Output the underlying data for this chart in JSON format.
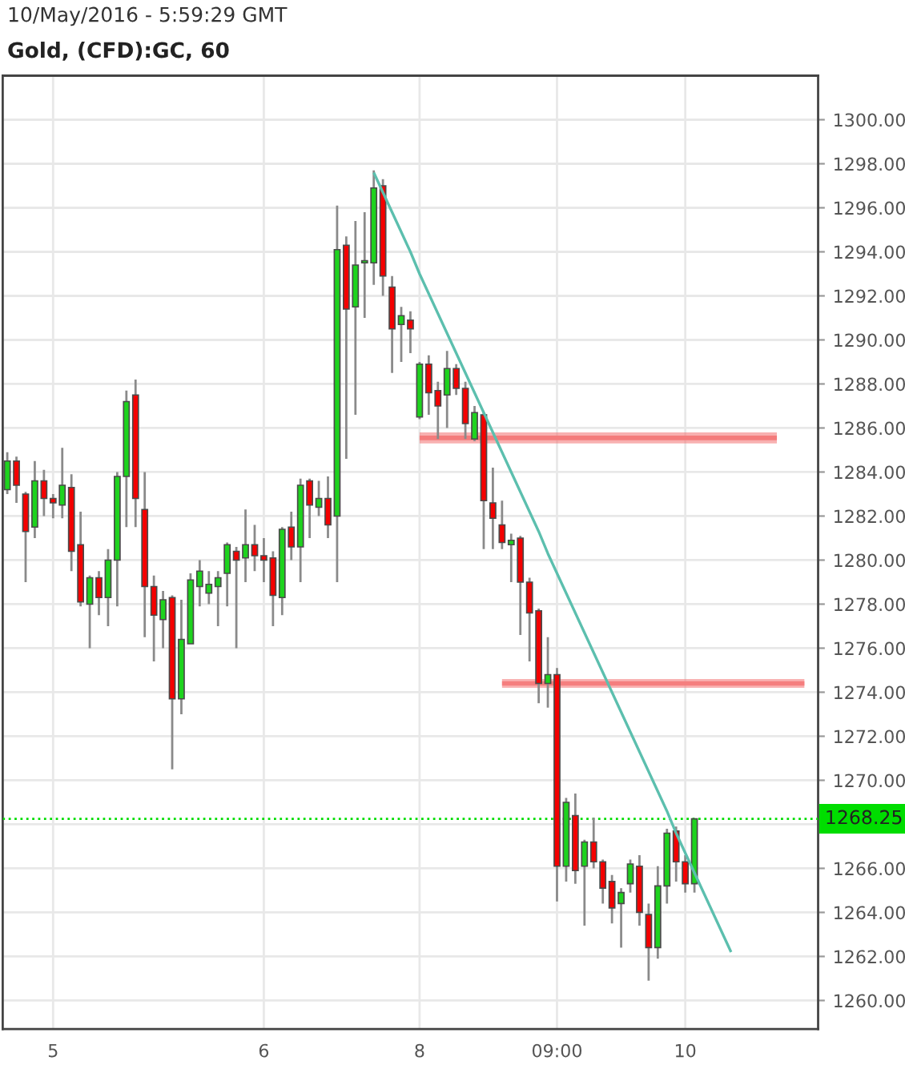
{
  "chart_data": {
    "type": "candlestick",
    "title": "Gold, (CFD):GC, 60",
    "annotations": [
      "10/May/2016 - 5:59:29 GMT"
    ],
    "categories": [
      null,
      null,
      null,
      null,
      null,
      "5",
      null,
      null,
      null,
      null,
      null,
      null,
      null,
      null,
      null,
      null,
      null,
      null,
      null,
      null,
      null,
      null,
      null,
      null,
      null,
      null,
      null,
      null,
      "6",
      null,
      null,
      null,
      null,
      null,
      null,
      null,
      null,
      null,
      null,
      null,
      null,
      null,
      null,
      null,
      null,
      "8",
      null,
      null,
      null,
      null,
      null,
      null,
      null,
      null,
      null,
      null,
      null,
      null,
      null,
      null,
      "09:00",
      null,
      null,
      null,
      null,
      null,
      null,
      null,
      null,
      null,
      null,
      null,
      null,
      null,
      "10",
      null,
      null,
      null,
      null,
      null,
      null,
      null,
      null,
      null,
      null,
      null,
      null,
      null,
      null
    ],
    "ohlc": [
      [
        1283.2,
        1284.9,
        1283.0,
        1284.5
      ],
      [
        1284.5,
        1284.7,
        1282.6,
        1283.4
      ],
      [
        1283.0,
        1283.1,
        1279.0,
        1281.3
      ],
      [
        1281.5,
        1284.5,
        1281.0,
        1283.6
      ],
      [
        1283.6,
        1284.1,
        1282.0,
        1282.8
      ],
      [
        1282.8,
        1283.0,
        1281.9,
        1282.6
      ],
      [
        1282.5,
        1285.1,
        1281.9,
        1283.4
      ],
      [
        1283.3,
        1283.9,
        1279.5,
        1280.4
      ],
      [
        1280.7,
        1282.2,
        1277.9,
        1278.1
      ],
      [
        1278.0,
        1279.3,
        1276.0,
        1279.2
      ],
      [
        1279.2,
        1279.5,
        1277.5,
        1278.3
      ],
      [
        1278.3,
        1280.5,
        1277.0,
        1280.0
      ],
      [
        1280.0,
        1284.0,
        1277.9,
        1283.8
      ],
      [
        1283.8,
        1287.7,
        1281.5,
        1287.2
      ],
      [
        1287.5,
        1288.2,
        1281.5,
        1282.8
      ],
      [
        1282.3,
        1284.0,
        1276.5,
        1278.8
      ],
      [
        1278.8,
        1279.3,
        1275.4,
        1277.5
      ],
      [
        1277.3,
        1278.6,
        1276.0,
        1278.2
      ],
      [
        1278.3,
        1278.4,
        1270.5,
        1273.7
      ],
      [
        1273.7,
        1278.2,
        1273.0,
        1276.4
      ],
      [
        1276.2,
        1279.4,
        1276.2,
        1279.1
      ],
      [
        1278.8,
        1280.0,
        1277.9,
        1279.5
      ],
      [
        1278.5,
        1279.5,
        1278.0,
        1278.9
      ],
      [
        1278.8,
        1279.5,
        1277.0,
        1279.2
      ],
      [
        1279.4,
        1280.8,
        1277.9,
        1280.7
      ],
      [
        1280.4,
        1280.6,
        1276.0,
        1280.0
      ],
      [
        1280.1,
        1282.3,
        1279.0,
        1280.7
      ],
      [
        1280.7,
        1281.6,
        1279.5,
        1280.2
      ],
      [
        1280.2,
        1281.0,
        1279.0,
        1280.0
      ],
      [
        1280.1,
        1280.4,
        1277.0,
        1278.4
      ],
      [
        1278.3,
        1281.5,
        1277.5,
        1281.4
      ],
      [
        1281.5,
        1282.2,
        1280.0,
        1280.6
      ],
      [
        1280.6,
        1283.7,
        1279.0,
        1283.4
      ],
      [
        1283.6,
        1283.7,
        1281.0,
        1282.5
      ],
      [
        1282.4,
        1283.6,
        1282.0,
        1282.8
      ],
      [
        1282.8,
        1283.8,
        1281.0,
        1281.6
      ],
      [
        1282.0,
        1296.1,
        1279.0,
        1294.1
      ],
      [
        1294.3,
        1294.7,
        1284.6,
        1291.4
      ],
      [
        1291.5,
        1295.4,
        1286.6,
        1293.4
      ],
      [
        1293.5,
        1295.8,
        1291.0,
        1293.6
      ],
      [
        1293.5,
        1297.7,
        1292.5,
        1296.9
      ],
      [
        1297.0,
        1297.3,
        1292.0,
        1292.9
      ],
      [
        1292.4,
        1292.9,
        1288.5,
        1290.5
      ],
      [
        1290.7,
        1291.5,
        1289.0,
        1291.1
      ],
      [
        1290.9,
        1291.3,
        1289.4,
        1290.5
      ],
      [
        1286.5,
        1289.0,
        1286.4,
        1288.9
      ],
      [
        1288.9,
        1289.3,
        1286.6,
        1287.6
      ],
      [
        1287.7,
        1288.1,
        1285.5,
        1287.0
      ],
      [
        1287.5,
        1289.5,
        1286.0,
        1288.7
      ],
      [
        1288.7,
        1288.9,
        1287.5,
        1287.8
      ],
      [
        1287.8,
        1288.1,
        1285.5,
        1286.2
      ],
      [
        1285.5,
        1287.0,
        1285.4,
        1286.7
      ],
      [
        1286.6,
        1286.7,
        1280.5,
        1282.7
      ],
      [
        1282.6,
        1284.2,
        1280.5,
        1281.9
      ],
      [
        1281.6,
        1282.7,
        1280.5,
        1280.8
      ],
      [
        1280.7,
        1281.2,
        1279.0,
        1280.9
      ],
      [
        1281.0,
        1281.1,
        1276.6,
        1279.0
      ],
      [
        1279.0,
        1279.2,
        1275.4,
        1277.6
      ],
      [
        1277.7,
        1277.8,
        1273.5,
        1274.4
      ],
      [
        1274.4,
        1276.5,
        1273.3,
        1274.8
      ],
      [
        1274.8,
        1275.1,
        1264.5,
        1266.1
      ],
      [
        1266.1,
        1269.2,
        1265.4,
        1269.0
      ],
      [
        1268.4,
        1269.4,
        1265.3,
        1265.9
      ],
      [
        1266.1,
        1267.3,
        1263.4,
        1267.2
      ],
      [
        1267.2,
        1268.3,
        1266.0,
        1266.3
      ],
      [
        1266.3,
        1266.4,
        1264.4,
        1265.1
      ],
      [
        1265.4,
        1265.7,
        1263.5,
        1264.2
      ],
      [
        1264.4,
        1265.1,
        1262.4,
        1264.9
      ],
      [
        1265.3,
        1266.4,
        1264.9,
        1266.2
      ],
      [
        1266.1,
        1266.6,
        1263.4,
        1264.0
      ],
      [
        1263.9,
        1264.4,
        1260.9,
        1262.4
      ],
      [
        1262.4,
        1266.1,
        1261.9,
        1265.2
      ],
      [
        1265.2,
        1267.8,
        1264.4,
        1267.6
      ],
      [
        1267.7,
        1267.9,
        1265.4,
        1266.3
      ],
      [
        1266.3,
        1266.6,
        1264.9,
        1265.3
      ],
      [
        1265.3,
        1268.25,
        1264.9,
        1268.25
      ],
      null,
      null,
      null,
      null,
      null,
      null,
      null,
      null,
      null,
      null,
      null,
      null,
      null
    ],
    "colors": [
      "#1ed31e",
      "#f40000",
      "#f40000",
      "#1ed31e",
      "#f40000",
      "#f40000",
      "#1ed31e",
      "#f40000",
      "#f40000",
      "#1ed31e",
      "#f40000",
      "#1ed31e",
      "#1ed31e",
      "#1ed31e",
      "#f40000",
      "#f40000",
      "#f40000",
      "#1ed31e",
      "#f40000",
      "#1ed31e",
      "#1ed31e",
      "#1ed31e",
      "#1ed31e",
      "#1ed31e",
      "#1ed31e",
      "#f40000",
      "#1ed31e",
      "#f40000",
      "#f40000",
      "#f40000",
      "#1ed31e",
      "#f40000",
      "#1ed31e",
      "#f40000",
      "#1ed31e",
      "#f40000",
      "#1ed31e",
      "#f40000",
      "#1ed31e",
      "#1ed31e",
      "#1ed31e",
      "#f40000",
      "#f40000",
      "#1ed31e",
      "#f40000",
      "#1ed31e",
      "#f40000",
      "#f40000",
      "#1ed31e",
      "#f40000",
      "#f40000",
      "#1ed31e",
      "#f40000",
      "#f40000",
      "#f40000",
      "#1ed31e",
      "#f40000",
      "#f40000",
      "#f40000",
      "#1ed31e",
      "#f40000",
      "#1ed31e",
      "#f40000",
      "#1ed31e",
      "#f40000",
      "#f40000",
      "#f40000",
      "#1ed31e",
      "#1ed31e",
      "#f40000",
      "#f40000",
      "#1ed31e",
      "#1ed31e",
      "#f40000",
      "#f40000",
      "#1ed31e",
      null,
      null,
      null,
      null,
      null,
      null,
      null,
      null,
      null,
      null,
      null,
      null,
      null
    ],
    "series": [
      {
        "type": "line",
        "color": "#5cbfae",
        "values": [
          null,
          null,
          null,
          null,
          null,
          null,
          null,
          null,
          null,
          null,
          null,
          null,
          null,
          null,
          null,
          null,
          null,
          null,
          null,
          null,
          null,
          null,
          null,
          null,
          null,
          null,
          null,
          null,
          null,
          null,
          null,
          null,
          null,
          null,
          null,
          null,
          null,
          null,
          null,
          null,
          1297.6,
          1296.7,
          1295.8,
          1294.9,
          1294.0,
          1293.0,
          1292.1,
          1291.2,
          1290.3,
          1289.4,
          1288.5,
          1287.6,
          1286.7,
          1285.8,
          1284.9,
          1284.0,
          1283.1,
          1282.2,
          1281.3,
          1280.3,
          1279.4,
          1278.5,
          1277.6,
          1276.7,
          1275.8,
          1274.9,
          1274.0,
          1273.1,
          1272.2,
          1271.3,
          1270.4,
          1269.5,
          1268.6,
          1267.6,
          1266.7,
          1265.8,
          1264.9,
          1264.0,
          1263.1,
          1262.2,
          null,
          null,
          null,
          null,
          null,
          null,
          null,
          null,
          null
        ]
      },
      {
        "type": "line",
        "color": "#f47c7c",
        "values": [
          null,
          null,
          null,
          null,
          null,
          null,
          null,
          null,
          null,
          null,
          null,
          null,
          null,
          null,
          null,
          null,
          null,
          null,
          null,
          null,
          null,
          null,
          null,
          null,
          null,
          null,
          null,
          null,
          null,
          null,
          null,
          null,
          null,
          null,
          null,
          null,
          null,
          null,
          null,
          null,
          null,
          null,
          null,
          null,
          null,
          1285.55,
          1285.55,
          1285.55,
          1285.55,
          1285.55,
          1285.55,
          1285.55,
          1285.55,
          1285.55,
          1285.55,
          1285.55,
          1285.55,
          1285.55,
          1285.55,
          1285.55,
          1285.55,
          1285.55,
          1285.55,
          1285.55,
          1285.55,
          1285.55,
          1285.55,
          1285.55,
          1285.55,
          1285.55,
          1285.55,
          1285.55,
          1285.55,
          1285.55,
          1285.55,
          1285.55,
          1285.55,
          1285.55,
          1285.55,
          1285.55,
          1285.55,
          1285.55,
          1285.55,
          1285.55,
          1285.55,
          null,
          null,
          null,
          null
        ],
        "lower": [
          null,
          null,
          null,
          null,
          null,
          null,
          null,
          null,
          null,
          null,
          null,
          null,
          null,
          null,
          null,
          null,
          null,
          null,
          null,
          null,
          null,
          null,
          null,
          null,
          null,
          null,
          null,
          null,
          null,
          null,
          null,
          null,
          null,
          null,
          null,
          null,
          null,
          null,
          null,
          null,
          null,
          null,
          null,
          null,
          null,
          1285.3,
          1285.3,
          1285.3,
          1285.3,
          1285.3,
          1285.3,
          1285.3,
          1285.3,
          1285.3,
          1285.3,
          1285.3,
          1285.3,
          1285.3,
          1285.3,
          1285.3,
          1285.3,
          1285.3,
          1285.3,
          1285.3,
          1285.3,
          1285.3,
          1285.3,
          1285.3,
          1285.3,
          1285.3,
          1285.3,
          1285.3,
          1285.3,
          1285.3,
          1285.3,
          1285.3,
          1285.3,
          1285.3,
          1285.3,
          1285.3,
          1285.3,
          1285.3,
          1285.3,
          1285.3,
          1285.3,
          null,
          null,
          null,
          null
        ],
        "upper": [
          null,
          null,
          null,
          null,
          null,
          null,
          null,
          null,
          null,
          null,
          null,
          null,
          null,
          null,
          null,
          null,
          null,
          null,
          null,
          null,
          null,
          null,
          null,
          null,
          null,
          null,
          null,
          null,
          null,
          null,
          null,
          null,
          null,
          null,
          null,
          null,
          null,
          null,
          null,
          null,
          null,
          null,
          null,
          null,
          null,
          1285.8,
          1285.8,
          1285.8,
          1285.8,
          1285.8,
          1285.8,
          1285.8,
          1285.8,
          1285.8,
          1285.8,
          1285.8,
          1285.8,
          1285.8,
          1285.8,
          1285.8,
          1285.8,
          1285.8,
          1285.8,
          1285.8,
          1285.8,
          1285.8,
          1285.8,
          1285.8,
          1285.8,
          1285.8,
          1285.8,
          1285.8,
          1285.8,
          1285.8,
          1285.8,
          1285.8,
          1285.8,
          1285.8,
          1285.8,
          1285.8,
          1285.8,
          1285.8,
          1285.8,
          1285.8,
          1285.8,
          null,
          null,
          null,
          null
        ]
      },
      {
        "type": "line",
        "color": "#f57e7e",
        "values": [
          null,
          null,
          null,
          null,
          null,
          null,
          null,
          null,
          null,
          null,
          null,
          null,
          null,
          null,
          null,
          null,
          null,
          null,
          null,
          null,
          null,
          null,
          null,
          null,
          null,
          null,
          null,
          null,
          null,
          null,
          null,
          null,
          null,
          null,
          null,
          null,
          null,
          null,
          null,
          null,
          null,
          null,
          null,
          null,
          null,
          null,
          null,
          null,
          null,
          null,
          null,
          null,
          null,
          null,
          1274.4,
          1274.4,
          1274.4,
          1274.4,
          1274.4,
          1274.4,
          1274.4,
          1274.4,
          1274.4,
          1274.4,
          1274.4,
          1274.4,
          1274.4,
          1274.4,
          1274.4,
          1274.4,
          1274.4,
          1274.4,
          1274.4,
          1274.4,
          1274.4,
          1274.4,
          1274.4,
          1274.4,
          1274.4,
          1274.4,
          1274.4,
          1274.4,
          1274.4,
          1274.4,
          1274.4,
          1274.4,
          1274.4,
          1274.4,
          null
        ],
        "lower": [
          null,
          null,
          null,
          null,
          null,
          null,
          null,
          null,
          null,
          null,
          null,
          null,
          null,
          null,
          null,
          null,
          null,
          null,
          null,
          null,
          null,
          null,
          null,
          null,
          null,
          null,
          null,
          null,
          null,
          null,
          null,
          null,
          null,
          null,
          null,
          null,
          null,
          null,
          null,
          null,
          null,
          null,
          null,
          null,
          null,
          null,
          null,
          null,
          null,
          null,
          null,
          null,
          null,
          null,
          1274.2,
          1274.2,
          1274.2,
          1274.2,
          1274.2,
          1274.2,
          1274.2,
          1274.2,
          1274.2,
          1274.2,
          1274.2,
          1274.2,
          1274.2,
          1274.2,
          1274.2,
          1274.2,
          1274.2,
          1274.2,
          1274.2,
          1274.2,
          1274.2,
          1274.2,
          1274.2,
          1274.2,
          1274.2,
          1274.2,
          1274.2,
          1274.2,
          1274.2,
          1274.2,
          1274.2,
          1274.2,
          1274.2,
          1274.2,
          null
        ],
        "upper": [
          null,
          null,
          null,
          null,
          null,
          null,
          null,
          null,
          null,
          null,
          null,
          null,
          null,
          null,
          null,
          null,
          null,
          null,
          null,
          null,
          null,
          null,
          null,
          null,
          null,
          null,
          null,
          null,
          null,
          null,
          null,
          null,
          null,
          null,
          null,
          null,
          null,
          null,
          null,
          null,
          null,
          null,
          null,
          null,
          null,
          null,
          null,
          null,
          null,
          null,
          null,
          null,
          null,
          null,
          1274.6,
          1274.6,
          1274.6,
          1274.6,
          1274.6,
          1274.6,
          1274.6,
          1274.6,
          1274.6,
          1274.6,
          1274.6,
          1274.6,
          1274.6,
          1274.6,
          1274.6,
          1274.6,
          1274.6,
          1274.6,
          1274.6,
          1274.6,
          1274.6,
          1274.6,
          1274.6,
          1274.6,
          1274.6,
          1274.6,
          1274.6,
          1274.6,
          1274.6,
          1274.6,
          1274.6,
          1274.6,
          1274.6,
          1274.6,
          null
        ]
      }
    ],
    "ylim": [
      1258.7,
      1302.0
    ],
    "yticks": [
      {
        "value": 1260,
        "label": "1260.00"
      },
      {
        "value": 1262,
        "label": "1262.00"
      },
      {
        "value": 1264,
        "label": "1264.00"
      },
      {
        "value": 1266,
        "label": "1266.00"
      },
      {
        "value": 1268,
        "label": null
      },
      {
        "value": 1270,
        "label": "1270.00"
      },
      {
        "value": 1272,
        "label": "1272.00"
      },
      {
        "value": 1274,
        "label": "1274.00"
      },
      {
        "value": 1276,
        "label": "1276.00"
      },
      {
        "value": 1278,
        "label": "1278.00"
      },
      {
        "value": 1280,
        "label": "1280.00"
      },
      {
        "value": 1282,
        "label": "1282.00"
      },
      {
        "value": 1284,
        "label": "1284.00"
      },
      {
        "value": 1286,
        "label": "1286.00"
      },
      {
        "value": 1288,
        "label": "1288.00"
      },
      {
        "value": 1290,
        "label": "1290.00"
      },
      {
        "value": 1292,
        "label": "1292.00"
      },
      {
        "value": 1294,
        "label": "1294.00"
      },
      {
        "value": 1296,
        "label": "1296.00"
      },
      {
        "value": 1298,
        "label": "1298.00"
      },
      {
        "value": 1300,
        "label": "1300.00"
      }
    ],
    "ref_lines": [
      {
        "axis": "y",
        "value": 1268.25,
        "label": "1268.25",
        "color": "#00dd00",
        "line_style": "dotted"
      }
    ],
    "grid": true
  }
}
